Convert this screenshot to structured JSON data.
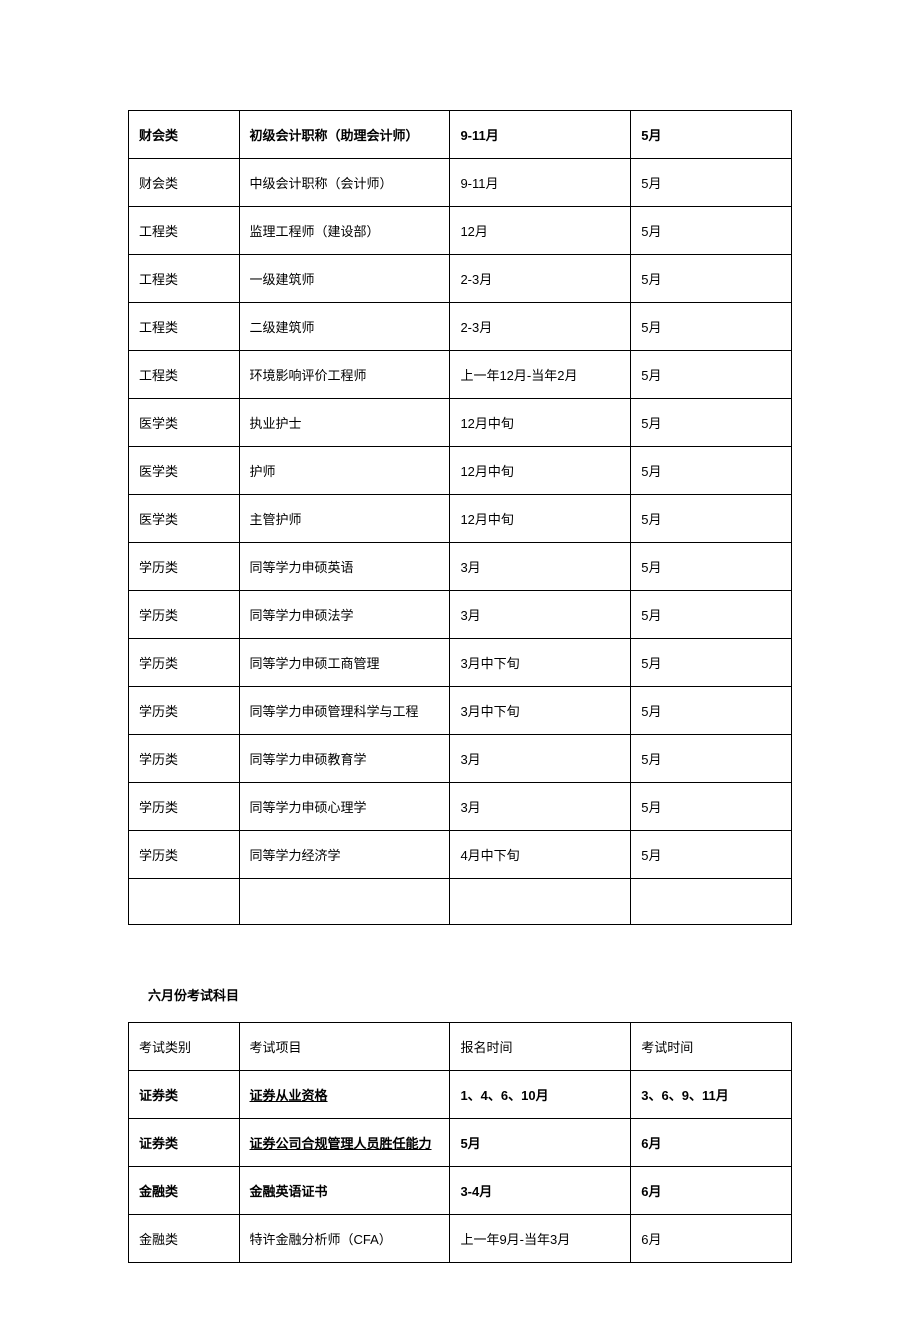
{
  "table1": {
    "col_widths": [
      "110px",
      "210px",
      "180px",
      "160px"
    ],
    "rows": [
      {
        "cells": [
          "财会类",
          "初级会计职称（助理会计师）",
          "9-11月",
          "5月"
        ],
        "bold": true
      },
      {
        "cells": [
          "财会类",
          "中级会计职称（会计师）",
          "9-11月",
          "5月"
        ],
        "bold": false
      },
      {
        "cells": [
          "工程类",
          "监理工程师（建设部）",
          "12月",
          "5月"
        ],
        "bold": false
      },
      {
        "cells": [
          "工程类",
          "一级建筑师",
          "2-3月",
          "5月"
        ],
        "bold": false
      },
      {
        "cells": [
          "工程类",
          "二级建筑师",
          "2-3月",
          "5月"
        ],
        "bold": false
      },
      {
        "cells": [
          "工程类",
          "环境影响评价工程师",
          "上一年12月-当年2月",
          "5月"
        ],
        "bold": false
      },
      {
        "cells": [
          "医学类",
          "执业护士",
          "12月中旬",
          "5月"
        ],
        "bold": false
      },
      {
        "cells": [
          "医学类",
          "护师",
          "12月中旬",
          "5月"
        ],
        "bold": false
      },
      {
        "cells": [
          "医学类",
          "主管护师",
          "12月中旬",
          "5月"
        ],
        "bold": false
      },
      {
        "cells": [
          "学历类",
          "同等学力申硕英语",
          "3月",
          "5月"
        ],
        "bold": false
      },
      {
        "cells": [
          "学历类",
          "同等学力申硕法学",
          "3月",
          "5月"
        ],
        "bold": false
      },
      {
        "cells": [
          "学历类",
          "同等学力申硕工商管理",
          "3月中下旬",
          "5月"
        ],
        "bold": false
      },
      {
        "cells": [
          "学历类",
          "同等学力申硕管理科学与工程",
          "3月中下旬",
          "5月"
        ],
        "bold": false
      },
      {
        "cells": [
          "学历类",
          "同等学力申硕教育学",
          "3月",
          "5月"
        ],
        "bold": false
      },
      {
        "cells": [
          "学历类",
          "同等学力申硕心理学",
          "3月",
          "5月"
        ],
        "bold": false
      },
      {
        "cells": [
          "学历类",
          "同等学力经济学",
          "4月中下旬",
          "5月"
        ],
        "bold": false
      },
      {
        "cells": [
          "",
          "",
          "",
          ""
        ],
        "bold": false
      }
    ]
  },
  "section2_title": "六月份考试科目",
  "table2": {
    "col_widths": [
      "110px",
      "210px",
      "180px",
      "160px"
    ],
    "header": [
      "考试类别",
      "考试项目",
      "报名时间",
      "考试时间"
    ],
    "rows": [
      {
        "cells": [
          "证券类",
          "证券从业资格",
          "1、4、6、10月",
          "3、6、9、11月"
        ],
        "bold": true,
        "underline_col2": true
      },
      {
        "cells": [
          "证券类",
          "证券公司合规管理人员胜任能力",
          "5月",
          "6月"
        ],
        "bold": true,
        "underline_col2": true
      },
      {
        "cells": [
          "金融类",
          "金融英语证书",
          "3-4月",
          "6月"
        ],
        "bold": true,
        "underline_col2": false
      },
      {
        "cells": [
          "金融类",
          "特许金融分析师（CFA）",
          "上一年9月-当年3月",
          "6月"
        ],
        "bold": false,
        "underline_col2": false
      }
    ]
  }
}
